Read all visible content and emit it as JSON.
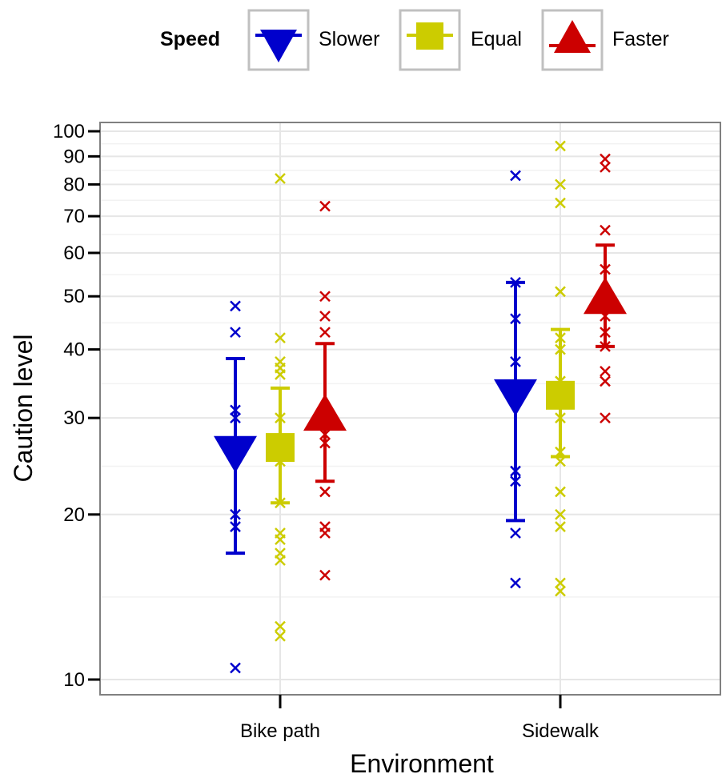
{
  "chart_data": {
    "type": "scatter",
    "title": "",
    "xlabel": "Environment",
    "ylabel": "Caution level",
    "categories": [
      "Bike path",
      "Sidewalk"
    ],
    "y_scale": "log",
    "ylim": [
      10,
      100
    ],
    "y_ticks": [
      10,
      20,
      30,
      40,
      50,
      60,
      70,
      80,
      90,
      100
    ],
    "grid": true,
    "legend": {
      "title": "Speed",
      "position": "top",
      "entries": [
        "Slower",
        "Equal",
        "Faster"
      ]
    },
    "colors": {
      "Slower": "#0000cc",
      "Equal": "#cccc00",
      "Faster": "#cc0000"
    },
    "series": [
      {
        "name": "Slower",
        "marker": "triangle-down",
        "means": [
          26,
          33
        ],
        "ci_low": [
          17,
          19.5
        ],
        "ci_high": [
          38.5,
          53
        ],
        "points": [
          [
            48,
            43,
            31,
            30,
            20,
            19,
            10.5
          ],
          [
            83,
            53,
            45.5,
            38,
            24,
            23,
            18.5,
            15
          ]
        ]
      },
      {
        "name": "Equal",
        "marker": "square",
        "means": [
          26.5,
          33
        ],
        "ci_low": [
          21,
          25.5
        ],
        "ci_high": [
          34,
          43.5
        ],
        "points": [
          [
            82,
            42,
            38,
            37,
            36,
            30,
            25,
            21,
            18.5,
            18,
            17,
            16.5,
            12.5,
            12
          ],
          [
            94,
            80,
            74,
            51,
            42,
            40,
            35,
            30,
            26,
            25,
            22,
            20,
            19,
            15,
            14.5
          ]
        ]
      },
      {
        "name": "Faster",
        "marker": "triangle-up",
        "means": [
          30,
          49
        ],
        "ci_low": [
          23,
          40.5
        ],
        "ci_high": [
          41,
          62
        ],
        "points": [
          [
            73,
            50,
            46,
            43,
            28,
            27,
            22,
            19,
            18.5,
            15.5
          ],
          [
            89,
            86,
            66,
            56,
            48,
            46,
            43,
            40.5,
            36.5,
            35,
            30
          ]
        ]
      }
    ]
  }
}
